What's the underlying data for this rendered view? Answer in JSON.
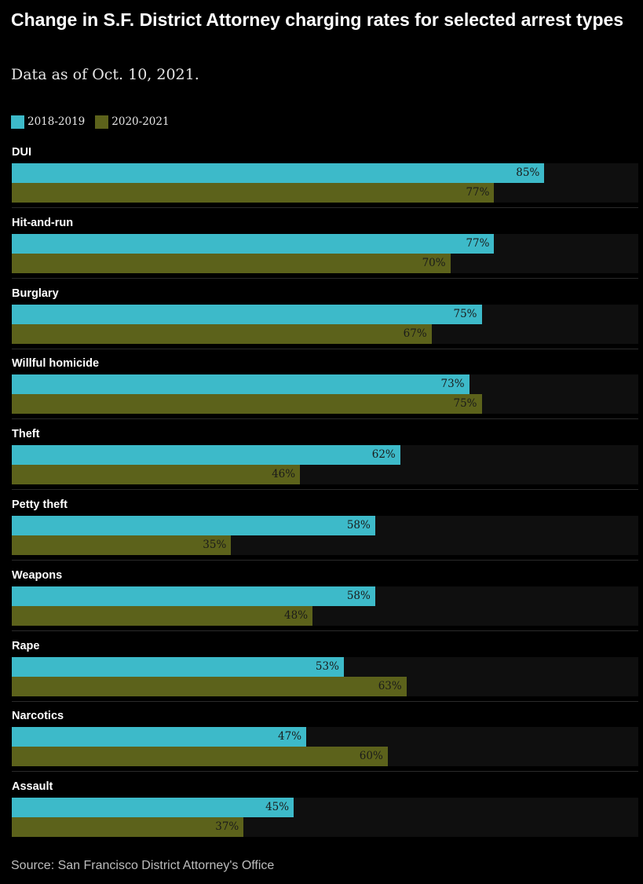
{
  "title": "Change in S.F. District Attorney charging rates for selected arrest types",
  "subtitle": "Data as of Oct. 10, 2021.",
  "source": "Source: San Francisco District Attorney's Office",
  "colors": {
    "series1": "#3dbac9",
    "series2": "#5c621b",
    "background": "#000000",
    "track": "#0f0f0f"
  },
  "chart_data": {
    "type": "bar",
    "orientation": "horizontal",
    "xlim": [
      0,
      100
    ],
    "value_suffix": "%",
    "legend_position": "top-left",
    "categories": [
      "DUI",
      "Hit-and-run",
      "Burglary",
      "Willful homicide",
      "Theft",
      "Petty theft",
      "Weapons",
      "Rape",
      "Narcotics",
      "Assault"
    ],
    "series": [
      {
        "name": "2018-2019",
        "color": "#3dbac9",
        "values": [
          85,
          77,
          75,
          73,
          62,
          58,
          58,
          53,
          47,
          45
        ]
      },
      {
        "name": "2020-2021",
        "color": "#5c621b",
        "values": [
          77,
          70,
          67,
          75,
          46,
          35,
          48,
          63,
          60,
          37
        ]
      }
    ]
  }
}
